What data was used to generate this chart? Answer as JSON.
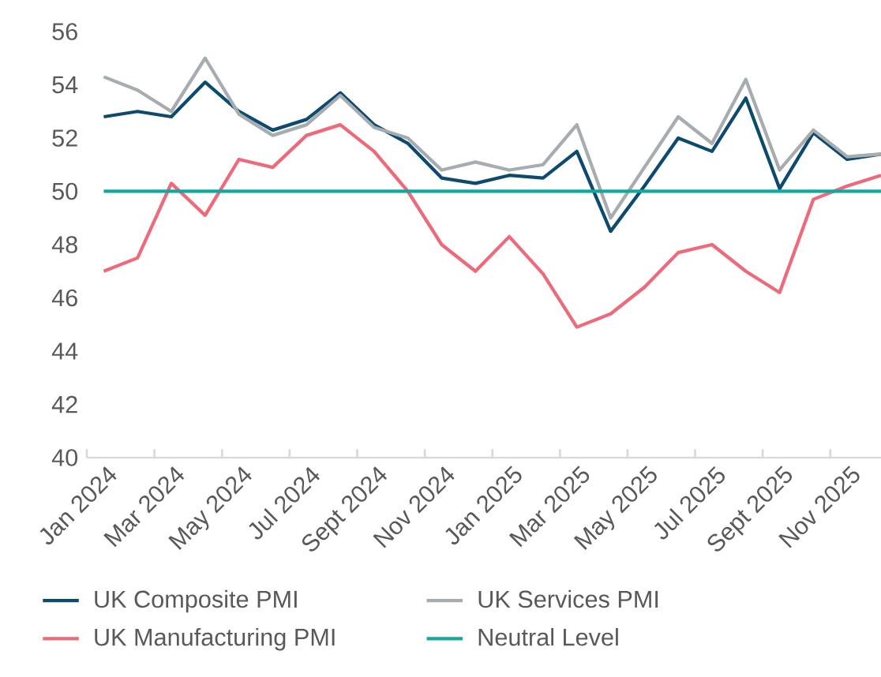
{
  "chart_data": {
    "type": "line",
    "categories": [
      "Jan 2024",
      null,
      "Mar 2024",
      null,
      "May 2024",
      null,
      "Jul 2024",
      null,
      "Sept 2024",
      null,
      "Nov 2024",
      null,
      "Jan 2025",
      null,
      "Mar 2025",
      null,
      "May 2025",
      null,
      "Jul 2025",
      null,
      "Sept 2025",
      null,
      "Nov 2025",
      null
    ],
    "series": [
      {
        "name": "UK Composite PMI",
        "color": "#0d4a70",
        "values": [
          52.8,
          53.0,
          52.8,
          54.1,
          53.0,
          52.3,
          52.7,
          53.7,
          52.5,
          51.8,
          50.5,
          50.3,
          50.6,
          50.5,
          51.5,
          48.5,
          50.2,
          52.0,
          51.5,
          53.5,
          50.1,
          52.2,
          51.2,
          51.4
        ]
      },
      {
        "name": "UK Services PMI",
        "color": "#a6acaf",
        "values": [
          54.3,
          53.8,
          53.0,
          55.0,
          52.9,
          52.1,
          52.5,
          53.6,
          52.4,
          52.0,
          50.8,
          51.1,
          50.8,
          51.0,
          52.5,
          49.0,
          50.9,
          52.8,
          51.8,
          54.2,
          50.8,
          52.3,
          51.3,
          51.4
        ]
      },
      {
        "name": "UK Manufacturing PMI",
        "color": "#ee6a7a",
        "values": [
          47.0,
          47.5,
          50.3,
          49.1,
          51.2,
          50.9,
          52.1,
          52.5,
          51.5,
          50.0,
          48.0,
          47.0,
          48.3,
          46.9,
          44.9,
          45.4,
          46.4,
          47.7,
          48.0,
          47.0,
          46.2,
          49.7,
          50.2,
          50.6
        ]
      },
      {
        "name": "Neutral Level",
        "color": "#13a89e",
        "values": [
          50,
          50,
          50,
          50,
          50,
          50,
          50,
          50,
          50,
          50,
          50,
          50,
          50,
          50,
          50,
          50,
          50,
          50,
          50,
          50,
          50,
          50,
          50,
          50
        ]
      }
    ],
    "ylim": [
      40,
      56
    ],
    "yticks": [
      40,
      42,
      44,
      46,
      48,
      50,
      52,
      54,
      56
    ],
    "grid": false,
    "legend": "bottom",
    "marker": "none",
    "line_style": "solid"
  }
}
